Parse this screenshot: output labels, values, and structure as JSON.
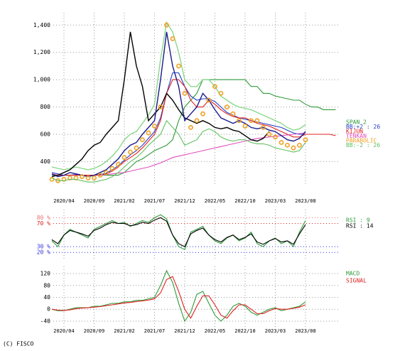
{
  "chart_data": [
    {
      "type": "line",
      "categories": [
        null,
        null,
        "2020/04",
        null,
        null,
        null,
        null,
        "2020/09",
        null,
        null,
        null,
        null,
        "2021/02",
        null,
        null,
        null,
        null,
        "2021/07",
        null,
        null,
        null,
        null,
        "2021/12",
        null,
        null,
        null,
        null,
        "2022/05",
        null,
        null,
        null,
        null,
        "2022/10",
        null,
        null,
        null,
        null,
        "2023/03",
        null,
        null,
        null,
        null,
        "2023/08",
        null,
        null,
        null,
        null,
        null
      ],
      "ylim": [
        220,
        1490
      ],
      "yticks": [
        400,
        600,
        800,
        {
          "value": 1000,
          "label": "1,000"
        },
        {
          "value": 1200,
          "label": "1,200"
        },
        {
          "value": 1400,
          "label": "1,400"
        }
      ],
      "grid": true,
      "series": [
        {
          "name": "SPAN 2",
          "color": "#2f9a3a",
          "mode": "line",
          "values": [
            300,
            300,
            300,
            300,
            300,
            300,
            300,
            300,
            300,
            300,
            300,
            300,
            320,
            360,
            400,
            420,
            450,
            480,
            500,
            520,
            560,
            700,
            800,
            850,
            900,
            1000,
            1000,
            1000,
            1000,
            1000,
            1000,
            1000,
            1000,
            950,
            950,
            900,
            900,
            880,
            870,
            860,
            850,
            850,
            820,
            800,
            800,
            780,
            780,
            780
          ]
        },
        {
          "color": "#8ad88a",
          "mode": "line",
          "values": [
            360,
            350,
            340,
            350,
            360,
            350,
            340,
            350,
            370,
            400,
            440,
            490,
            560,
            600,
            620,
            680,
            740,
            820,
            1150,
            1420,
            1350,
            1200,
            1000,
            950,
            950,
            1000,
            1000,
            950,
            880,
            850,
            820,
            800,
            790,
            780,
            760,
            740,
            720,
            700,
            680,
            650,
            630,
            640,
            670,
            null,
            null,
            null,
            null,
            null
          ]
        },
        {
          "name": "BB:+2 : 26",
          "color": "#2040c8",
          "mode": "line",
          "values": [
            320,
            310,
            300,
            300,
            305,
            300,
            300,
            300,
            305,
            315,
            340,
            370,
            410,
            450,
            480,
            520,
            570,
            620,
            720,
            900,
            1050,
            1050,
            950,
            880,
            850,
            860,
            860,
            840,
            800,
            760,
            740,
            720,
            710,
            700,
            690,
            680,
            670,
            660,
            650,
            630,
            610,
            600,
            600,
            null,
            null,
            null,
            null,
            null
          ]
        },
        {
          "name": "KIJUN",
          "color": "#e02020",
          "mode": "line",
          "values": [
            310,
            300,
            300,
            300,
            300,
            300,
            300,
            300,
            300,
            310,
            330,
            360,
            400,
            430,
            460,
            500,
            550,
            600,
            700,
            900,
            1000,
            1000,
            950,
            850,
            800,
            800,
            850,
            820,
            780,
            750,
            730,
            720,
            720,
            700,
            680,
            670,
            660,
            640,
            620,
            600,
            580,
            580,
            600,
            600,
            600,
            600,
            600,
            590
          ]
        },
        {
          "name": "TENKAN",
          "color": "#e050c0",
          "mode": "line",
          "values": [
            null,
            null,
            null,
            null,
            null,
            null,
            null,
            null,
            300,
            305,
            310,
            315,
            320,
            330,
            340,
            350,
            360,
            375,
            390,
            410,
            430,
            440,
            450,
            460,
            470,
            480,
            490,
            500,
            510,
            520,
            530,
            540,
            550,
            560,
            570,
            575,
            580,
            585,
            590,
            595,
            600,
            605,
            610,
            null,
            null,
            null,
            null,
            null
          ]
        },
        {
          "color": "#000000",
          "mode": "line",
          "values": [
            290,
            300,
            320,
            340,
            380,
            420,
            480,
            520,
            540,
            600,
            650,
            700,
            1000,
            1350,
            1100,
            950,
            700,
            750,
            800,
            900,
            850,
            780,
            720,
            700,
            680,
            700,
            680,
            650,
            640,
            650,
            630,
            620,
            590,
            560,
            550,
            570,
            620,
            null,
            null,
            null,
            null,
            null,
            null,
            null,
            null,
            null,
            null,
            null
          ]
        },
        {
          "color": "#1a1a8c",
          "mode": "line",
          "values": [
            310,
            290,
            300,
            320,
            310,
            300,
            290,
            300,
            320,
            340,
            380,
            420,
            480,
            520,
            540,
            600,
            650,
            700,
            1000,
            1350,
            1100,
            950,
            700,
            750,
            800,
            900,
            850,
            780,
            720,
            700,
            680,
            700,
            680,
            650,
            640,
            650,
            630,
            620,
            590,
            560,
            550,
            570,
            620,
            null,
            null,
            null,
            null,
            null
          ]
        },
        {
          "name": "PARABOLIC",
          "color": "#f0a020",
          "mode": "markers",
          "values": [
            270,
            260,
            270,
            280,
            280,
            290,
            280,
            280,
            300,
            320,
            350,
            380,
            430,
            470,
            500,
            560,
            610,
            660,
            800,
            1400,
            1300,
            1100,
            900,
            650,
            700,
            750,
            850,
            950,
            900,
            800,
            750,
            700,
            660,
            700,
            700,
            650,
            600,
            580,
            540,
            520,
            500,
            520,
            560,
            null,
            null,
            null,
            null,
            null
          ]
        },
        {
          "name": "BB:-2 : 26",
          "color": "#60c060",
          "mode": "line",
          "values": [
            280,
            260,
            260,
            270,
            270,
            260,
            250,
            250,
            260,
            270,
            290,
            320,
            360,
            400,
            430,
            470,
            520,
            560,
            600,
            700,
            650,
            600,
            520,
            540,
            560,
            620,
            640,
            620,
            580,
            560,
            550,
            560,
            560,
            540,
            530,
            530,
            520,
            500,
            490,
            480,
            470,
            480,
            540,
            null,
            null,
            null,
            null,
            null
          ]
        }
      ]
    },
    {
      "type": "line",
      "ylim": [
        8,
        94
      ],
      "yticks": [
        {
          "value": 80,
          "label": "80 %"
        },
        {
          "value": 70,
          "label": "70 %"
        },
        {
          "value": 30,
          "label": "30 %"
        },
        {
          "value": 20,
          "label": "20 %"
        }
      ],
      "ytick_colors": [
        "#e87070",
        "#e02020",
        "#3030e0",
        "#3030e0"
      ],
      "grid": true,
      "series": [
        {
          "name": "RSI : 9",
          "color": "#2f9a3a",
          "mode": "line",
          "values": [
            40,
            30,
            50,
            60,
            55,
            50,
            45,
            60,
            65,
            70,
            75,
            70,
            72,
            65,
            70,
            75,
            72,
            80,
            85,
            78,
            50,
            30,
            25,
            55,
            60,
            65,
            50,
            40,
            35,
            45,
            50,
            40,
            45,
            55,
            35,
            30,
            40,
            45,
            35,
            40,
            30,
            55,
            75,
            null,
            null,
            null,
            null,
            null
          ]
        },
        {
          "name": "RSI : 14",
          "color": "#000000",
          "mode": "line",
          "values": [
            42,
            35,
            50,
            58,
            55,
            52,
            48,
            58,
            62,
            68,
            72,
            70,
            70,
            66,
            68,
            72,
            70,
            76,
            80,
            74,
            50,
            35,
            30,
            52,
            58,
            62,
            50,
            42,
            38,
            46,
            50,
            42,
            46,
            52,
            38,
            34,
            40,
            44,
            38,
            40,
            34,
            52,
            68,
            null,
            null,
            null,
            null,
            null
          ]
        }
      ]
    },
    {
      "type": "line",
      "ylim": [
        -64,
        144
      ],
      "yticks": [
        120,
        80,
        40,
        0,
        -40
      ],
      "grid": true,
      "series": [
        {
          "name": "MACD",
          "color": "#2f9a3a",
          "mode": "line",
          "values": [
            0,
            -5,
            -5,
            0,
            5,
            5,
            5,
            10,
            10,
            15,
            20,
            20,
            25,
            25,
            30,
            30,
            35,
            40,
            80,
            130,
            90,
            20,
            -40,
            -10,
            50,
            60,
            20,
            -20,
            -40,
            -20,
            10,
            20,
            10,
            -10,
            -20,
            -10,
            0,
            5,
            -5,
            0,
            5,
            10,
            25,
            null,
            null,
            null,
            null,
            null
          ]
        },
        {
          "name": "SIGNAL",
          "color": "#e02020",
          "mode": "line",
          "values": [
            0,
            -3,
            -4,
            -2,
            2,
            4,
            5,
            7,
            9,
            12,
            15,
            18,
            21,
            23,
            26,
            28,
            31,
            35,
            55,
            100,
            110,
            60,
            0,
            -30,
            10,
            45,
            45,
            15,
            -20,
            -30,
            -5,
            15,
            15,
            0,
            -15,
            -15,
            -5,
            2,
            0,
            0,
            3,
            7,
            15,
            null,
            null,
            null,
            null,
            null
          ]
        }
      ]
    }
  ],
  "copyright": "(C) FISCO"
}
